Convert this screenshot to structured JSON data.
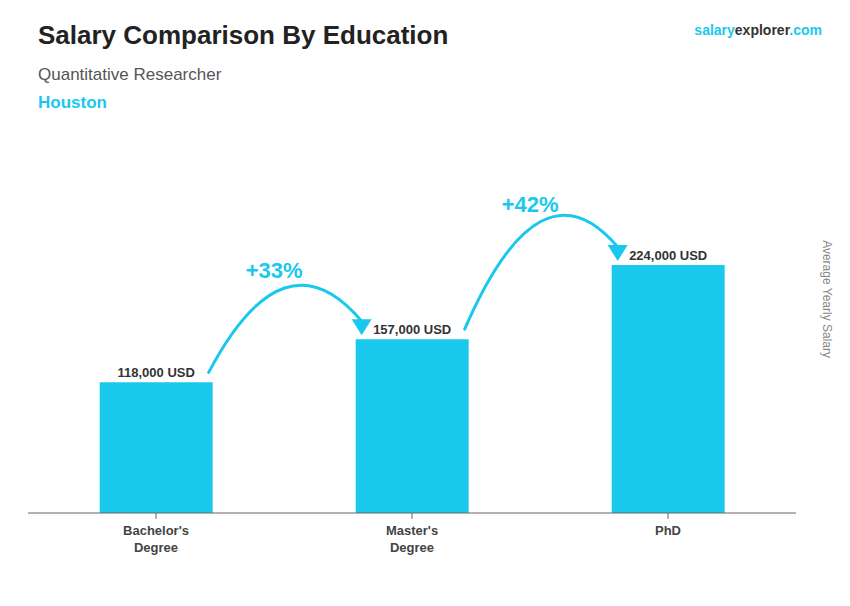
{
  "chart_data": {
    "type": "bar",
    "title": "Salary Comparison By Education",
    "subtitle": "Quantitative Researcher",
    "location": "Houston",
    "watermark": [
      "salary",
      "explorer",
      ".com"
    ],
    "ylabel": "Average Yearly Salary",
    "categories": [
      "Bachelor's\nDegree",
      "Master's\nDegree",
      "PhD"
    ],
    "values": [
      118000,
      157000,
      224000
    ],
    "value_labels": [
      "118,000 USD",
      "157,000 USD",
      "224,000 USD"
    ],
    "annotations": [
      "+33%",
      "+42%"
    ],
    "color": "#1ac8ed",
    "ylim": [
      0,
      280000
    ],
    "data_labels": true,
    "tick_labels": "x",
    "grid": false
  }
}
